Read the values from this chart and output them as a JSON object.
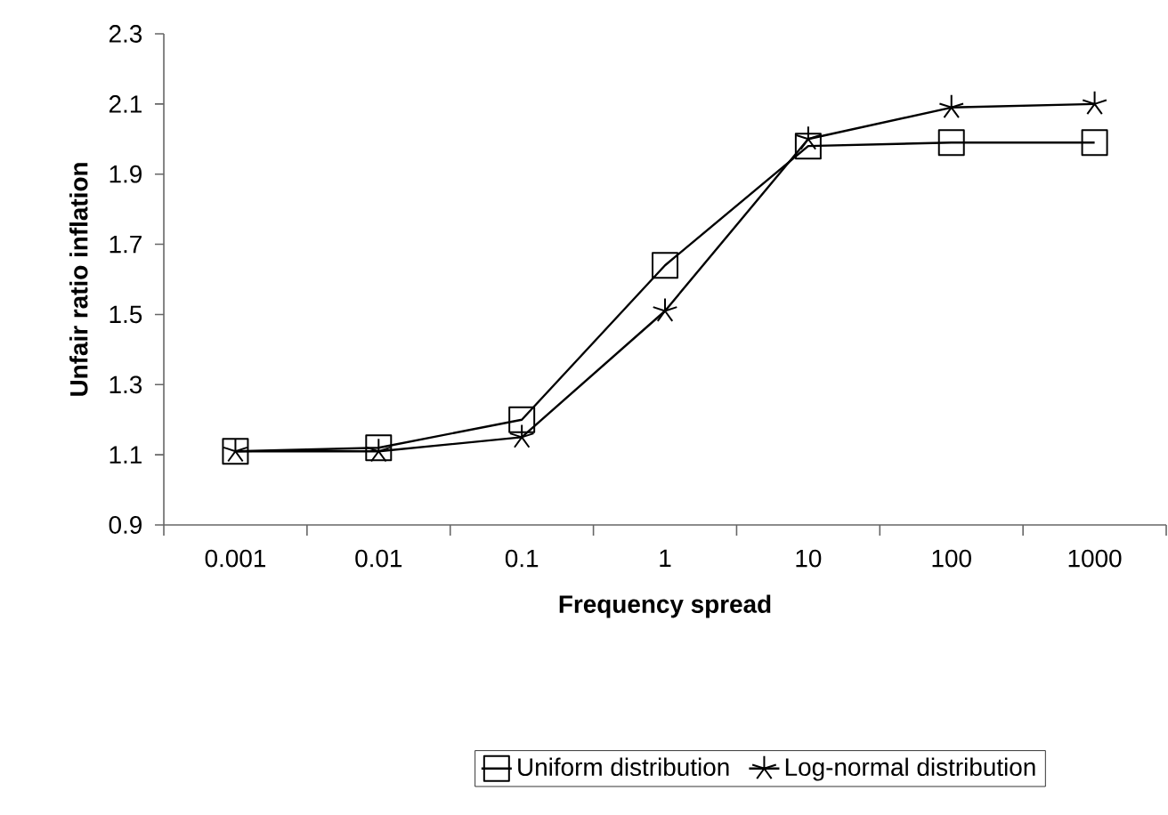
{
  "chart_data": {
    "type": "line",
    "xlabel": "Frequency spread",
    "ylabel": "Unfair ratio inflation",
    "categories": [
      "0.001",
      "0.01",
      "0.1",
      "1",
      "10",
      "100",
      "1000"
    ],
    "ylim": [
      0.9,
      2.3
    ],
    "yticks": [
      0.9,
      1.1,
      1.3,
      1.5,
      1.7,
      1.9,
      2.1,
      2.3
    ],
    "grid": false,
    "legend": "bottom",
    "series": [
      {
        "name": "Uniform distribution",
        "color": "#000000",
        "marker": "square",
        "values": [
          1.11,
          1.12,
          1.2,
          1.64,
          1.98,
          1.99,
          1.99
        ]
      },
      {
        "name": "Log-normal distribution",
        "color": "#000000",
        "marker": "cross",
        "values": [
          1.11,
          1.11,
          1.15,
          1.51,
          2.0,
          2.09,
          2.1
        ]
      }
    ]
  }
}
